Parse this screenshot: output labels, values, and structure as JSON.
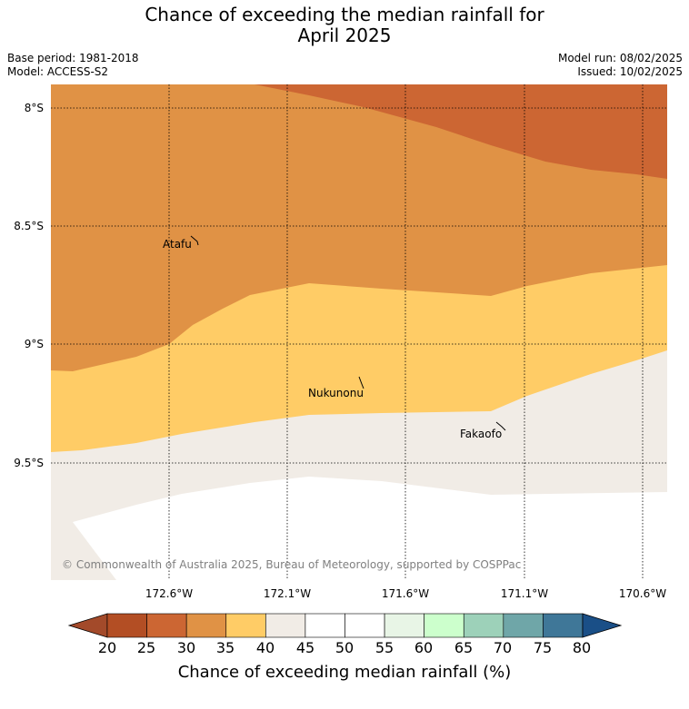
{
  "title": {
    "line1": "Chance of exceeding the median rainfall for",
    "line2": "April 2025"
  },
  "meta": {
    "base_period": "Base period: 1981-2018",
    "model": "Model: ACCESS-S2",
    "model_run": "Model run: 08/02/2025",
    "issued": "Issued: 10/02/2025"
  },
  "map": {
    "lat_labels": [
      "8°S",
      "8.5°S",
      "9°S",
      "9.5°S"
    ],
    "lon_labels": [
      "172.6°W",
      "172.1°W",
      "171.6°W",
      "171.1°W",
      "170.6°W"
    ],
    "places": [
      "Atafu",
      "Nukunonu",
      "Fakaofo"
    ],
    "copyright": "© Commonwealth of Australia 2025, Bureau of Meteorology, supported by COSPPac",
    "colors": {
      "20-25": "#b34e24",
      "25-30": "#cc6633",
      "30-35": "#e09245",
      "35-40": "#ffcc66",
      "40-45": "#f1ece6",
      "45-55": "#ffffff",
      "55-60": "#e8f5e6",
      "60-65": "#ccffcc",
      "65-70": "#9dd1b9",
      "70-75": "#6fa6a8",
      "75-80": "#3f7798",
      "under": "#a34a2a",
      "over": "#1a4f87"
    }
  },
  "colorbar": {
    "ticks": [
      "20",
      "25",
      "30",
      "35",
      "40",
      "45",
      "50",
      "55",
      "60",
      "65",
      "70",
      "75",
      "80"
    ],
    "label": "Chance of exceeding median rainfall (%)"
  }
}
